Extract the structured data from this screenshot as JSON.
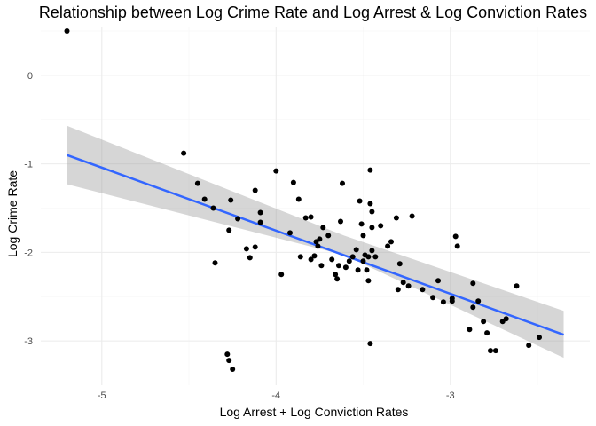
{
  "chart_data": {
    "type": "scatter",
    "title": "Relationship between Log Crime Rate and Log Arrest & Log Conviction Rates",
    "xlabel": "Log Arrest + Log Conviction Rates",
    "ylabel": "Log Crime Rate",
    "xlim": [
      -5.35,
      -2.2
    ],
    "ylim": [
      -3.5,
      0.55
    ],
    "x_ticks": [
      -5,
      -4,
      -3
    ],
    "x_tick_labels": [
      "-5",
      "-4",
      "-3"
    ],
    "y_ticks": [
      0,
      -1,
      -2,
      -3
    ],
    "y_tick_labels": [
      "0",
      "-1",
      "-2",
      "-3"
    ],
    "grid": true,
    "legend": "none",
    "colors": {
      "points": "#000000",
      "fit_line": "#3366FF",
      "ribbon": "#999999"
    },
    "points": [
      [
        -5.2,
        0.5
      ],
      [
        -4.53,
        -0.88
      ],
      [
        -4.45,
        -1.22
      ],
      [
        -4.41,
        -1.4
      ],
      [
        -4.36,
        -1.5
      ],
      [
        -4.35,
        -2.12
      ],
      [
        -4.27,
        -1.75
      ],
      [
        -4.26,
        -1.41
      ],
      [
        -4.22,
        -1.62
      ],
      [
        -4.17,
        -1.96
      ],
      [
        -4.15,
        -2.06
      ],
      [
        -4.12,
        -1.94
      ],
      [
        -4.12,
        -1.3
      ],
      [
        -4.09,
        -1.66
      ],
      [
        -4.09,
        -1.55
      ],
      [
        -4.0,
        -1.08
      ],
      [
        -3.97,
        -2.25
      ],
      [
        -3.92,
        -1.78
      ],
      [
        -3.9,
        -1.21
      ],
      [
        -3.87,
        -1.4
      ],
      [
        -3.86,
        -2.05
      ],
      [
        -3.83,
        -1.61
      ],
      [
        -3.8,
        -2.08
      ],
      [
        -3.8,
        -1.6
      ],
      [
        -3.78,
        -2.04
      ],
      [
        -3.77,
        -1.88
      ],
      [
        -3.76,
        -1.93
      ],
      [
        -3.75,
        -1.85
      ],
      [
        -3.74,
        -2.15
      ],
      [
        -3.73,
        -1.72
      ],
      [
        -3.7,
        -1.81
      ],
      [
        -3.68,
        -2.08
      ],
      [
        -3.66,
        -2.25
      ],
      [
        -3.65,
        -2.3
      ],
      [
        -3.64,
        -2.15
      ],
      [
        -3.63,
        -1.65
      ],
      [
        -3.62,
        -1.22
      ],
      [
        -3.6,
        -2.17
      ],
      [
        -3.58,
        -2.1
      ],
      [
        -3.56,
        -2.05
      ],
      [
        -3.54,
        -1.97
      ],
      [
        -3.53,
        -2.2
      ],
      [
        -3.52,
        -1.42
      ],
      [
        -3.51,
        -1.68
      ],
      [
        -3.5,
        -2.1
      ],
      [
        -3.5,
        -1.81
      ],
      [
        -3.49,
        -2.03
      ],
      [
        -3.48,
        -2.2
      ],
      [
        -3.47,
        -2.32
      ],
      [
        -3.47,
        -2.05
      ],
      [
        -3.46,
        -1.45
      ],
      [
        -3.46,
        -1.07
      ],
      [
        -3.45,
        -1.54
      ],
      [
        -3.45,
        -1.72
      ],
      [
        -3.45,
        -1.98
      ],
      [
        -3.43,
        -2.05
      ],
      [
        -3.4,
        -1.7
      ],
      [
        -3.36,
        -1.93
      ],
      [
        -3.34,
        -1.88
      ],
      [
        -3.31,
        -1.61
      ],
      [
        -3.3,
        -2.42
      ],
      [
        -3.29,
        -2.13
      ],
      [
        -3.27,
        -2.34
      ],
      [
        -3.24,
        -2.38
      ],
      [
        -3.22,
        -1.59
      ],
      [
        -3.16,
        -2.42
      ],
      [
        -3.1,
        -2.51
      ],
      [
        -3.07,
        -2.32
      ],
      [
        -3.04,
        -2.56
      ],
      [
        -2.99,
        -2.52
      ],
      [
        -2.99,
        -2.55
      ],
      [
        -2.97,
        -1.82
      ],
      [
        -2.96,
        -1.93
      ],
      [
        -2.89,
        -2.87
      ],
      [
        -2.87,
        -2.62
      ],
      [
        -2.87,
        -2.35
      ],
      [
        -2.84,
        -2.55
      ],
      [
        -2.81,
        -2.78
      ],
      [
        -2.79,
        -2.91
      ],
      [
        -2.77,
        -3.11
      ],
      [
        -2.74,
        -3.11
      ],
      [
        -2.7,
        -2.78
      ],
      [
        -2.68,
        -2.75
      ],
      [
        -2.62,
        -2.38
      ],
      [
        -2.55,
        -3.05
      ],
      [
        -2.49,
        -2.96
      ],
      [
        -3.46,
        -3.03
      ],
      [
        -4.28,
        -3.15
      ],
      [
        -4.27,
        -3.22
      ],
      [
        -4.25,
        -3.32
      ]
    ],
    "fit_line": {
      "x": [
        -5.2,
        -2.35
      ],
      "y": [
        -0.9,
        -2.93
      ]
    },
    "ribbon": {
      "x": [
        -5.2,
        -3.61,
        -2.35
      ],
      "upper": [
        -0.57,
        -1.81,
        -2.66
      ],
      "lower": [
        -1.23,
        -2.03,
        -3.19
      ]
    }
  }
}
